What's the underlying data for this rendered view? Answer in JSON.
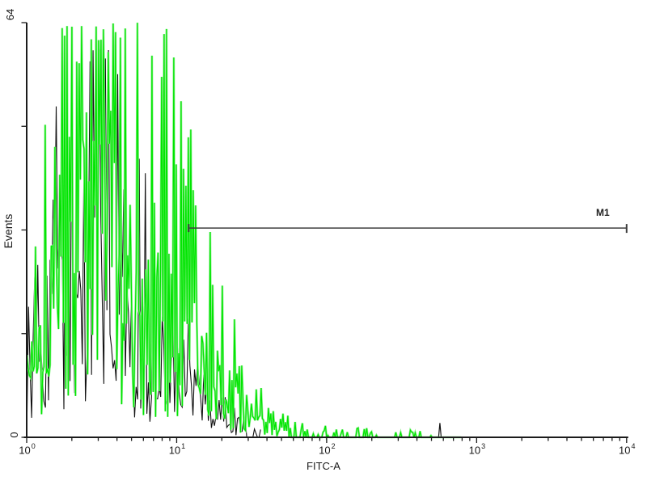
{
  "page": {
    "background": "#ffffff"
  },
  "labels": {
    "x_axis_title": "FITC-A",
    "y_axis_title": "Events",
    "y_max": "64",
    "y_min": "0",
    "m1": "M1"
  },
  "chart_data": {
    "type": "line",
    "subtype": "flow-cytometry-overlay-histogram",
    "title": "",
    "xlabel": "FITC-A",
    "ylabel": "Events",
    "x_scale": "log10",
    "x_range": [
      1,
      10000
    ],
    "y_range": [
      0,
      64
    ],
    "x_tick_base": "10",
    "x_tick_exponents": [
      0,
      1,
      2,
      3,
      4
    ],
    "x_minor_ticks_per_decade": [
      2,
      3,
      4,
      5,
      6,
      7,
      8,
      9
    ],
    "y_ticks": [
      0,
      16,
      32,
      48,
      64
    ],
    "y_tick_labels_shown": [
      "0",
      "64"
    ],
    "grid": false,
    "legend": null,
    "axis_color": "#1b1b1b",
    "marker_gate": {
      "label": "M1",
      "x_from_log10": 1.08,
      "x_to_log10": 4.0,
      "y_events": 32.3,
      "color": "#3d3d3d"
    },
    "series": [
      {
        "name": "black-outline",
        "color": "#111111",
        "halo_color": null,
        "max_events": 60,
        "peak_events": 58,
        "peak_log10x": 0.5,
        "envelope": [
          [
            0,
            9
          ],
          [
            0.08,
            14
          ],
          [
            0.15,
            19
          ],
          [
            0.22,
            25
          ],
          [
            0.3,
            30
          ],
          [
            0.4,
            35
          ],
          [
            0.5,
            34
          ],
          [
            0.6,
            29
          ],
          [
            0.7,
            24
          ],
          [
            0.8,
            19
          ],
          [
            0.9,
            16
          ],
          [
            1.0,
            13
          ],
          [
            1.1,
            9
          ],
          [
            1.2,
            6
          ],
          [
            1.3,
            3.5
          ],
          [
            1.4,
            2
          ],
          [
            1.48,
            1
          ],
          [
            1.56,
            0.4
          ]
        ],
        "extra_spikes": [
          [
            2.755,
            2.2
          ]
        ]
      },
      {
        "name": "green-outline",
        "color": "#00e500",
        "halo_color": "#8df08d",
        "max_events": 64,
        "peak_events": 64,
        "peak_log10x": 0.55,
        "envelope": [
          [
            0,
            14
          ],
          [
            0.08,
            19
          ],
          [
            0.15,
            24
          ],
          [
            0.22,
            30
          ],
          [
            0.3,
            36
          ],
          [
            0.38,
            43
          ],
          [
            0.45,
            46
          ],
          [
            0.52,
            45
          ],
          [
            0.6,
            43
          ],
          [
            0.68,
            41
          ],
          [
            0.75,
            36
          ],
          [
            0.82,
            31
          ],
          [
            0.9,
            27
          ],
          [
            1.0,
            23
          ],
          [
            1.1,
            20
          ],
          [
            1.2,
            16
          ],
          [
            1.3,
            11
          ],
          [
            1.4,
            7
          ],
          [
            1.5,
            4
          ],
          [
            1.6,
            2.4
          ],
          [
            1.7,
            1.5
          ],
          [
            1.8,
            0.9
          ],
          [
            1.95,
            0.6
          ],
          [
            2.2,
            0.5
          ],
          [
            2.5,
            0.35
          ],
          [
            2.75,
            0.3
          ],
          [
            2.9,
            0.2
          ]
        ],
        "extra_spikes": []
      }
    ]
  }
}
